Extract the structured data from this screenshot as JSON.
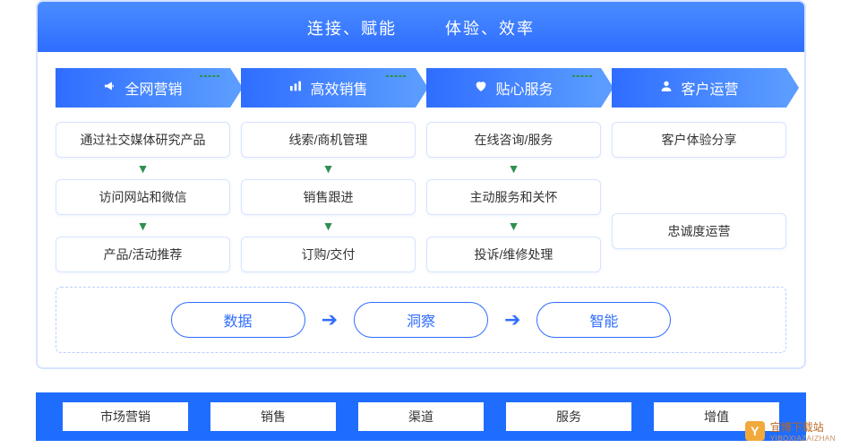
{
  "type": "flowchart",
  "header": {
    "left": "连接、赋能",
    "right": "体验、效率"
  },
  "colors": {
    "primary": "#2f6dff",
    "primary_light": "#5a9cff",
    "border": "#d6e4ff",
    "dash_green": "#2f8f4f",
    "dash_blue": "#b8d0ff",
    "footer_bg": "#1f6dff",
    "text": "#333333",
    "white": "#ffffff"
  },
  "ribbons": [
    {
      "icon": "megaphone-icon",
      "label": "全网营销"
    },
    {
      "icon": "bars-icon",
      "label": "高效销售"
    },
    {
      "icon": "heart-icon",
      "label": "贴心服务"
    },
    {
      "icon": "user-icon",
      "label": "客户运营"
    }
  ],
  "columns": [
    {
      "items": [
        "通过社交媒体研究产品",
        "访问网站和微信",
        "产品/活动推荐"
      ],
      "show_arrows": true
    },
    {
      "items": [
        "线索/商机管理",
        "销售跟进",
        "订购/交付"
      ],
      "show_arrows": true
    },
    {
      "items": [
        "在线咨询/服务",
        "主动服务和关怀",
        "投诉/维修处理"
      ],
      "show_arrows": true
    },
    {
      "items": [
        "客户体验分享",
        "忠诚度运营"
      ],
      "show_arrows": false
    }
  ],
  "column_connectors": [
    {
      "from_col": 0,
      "to_col": 1
    },
    {
      "from_col": 1,
      "to_col": 2
    },
    {
      "from_col": 2,
      "to_col": 3
    }
  ],
  "pills": [
    "数据",
    "洞察",
    "智能"
  ],
  "footer": [
    "市场营销",
    "销售",
    "渠道",
    "服务",
    "增值"
  ],
  "watermark": {
    "brand": "宜博下载站",
    "sub": "YIBOXIAZAIZHAN"
  }
}
